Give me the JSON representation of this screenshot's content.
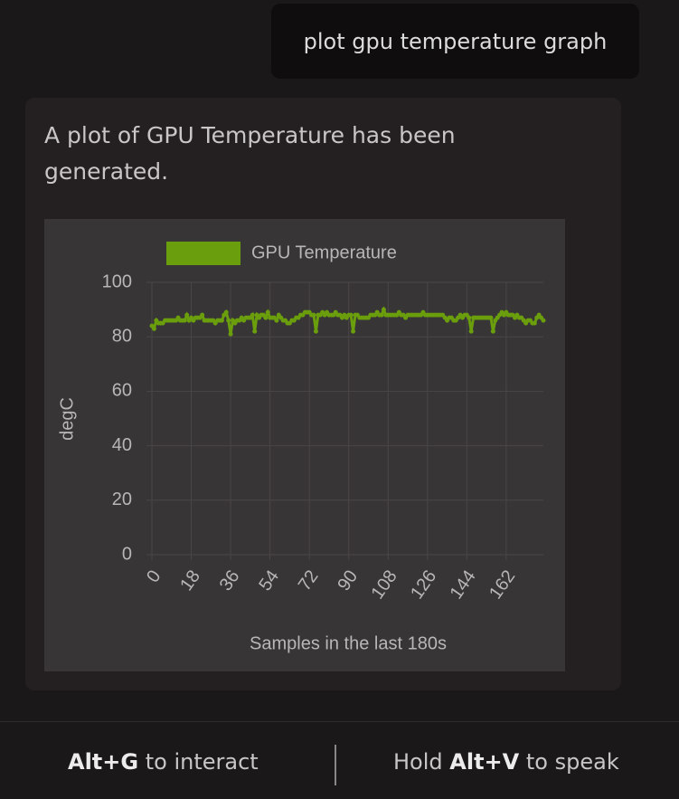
{
  "user_message": "plot gpu temperature graph",
  "assistant_message": "A plot of GPU Temperature has been generated.",
  "footer": {
    "left": {
      "key": "Alt+G",
      "text": "to interact"
    },
    "right": {
      "prefix": "Hold",
      "key": "Alt+V",
      "text": "to speak"
    }
  },
  "chart_data": {
    "type": "line",
    "x_label": "Samples in the last 180s",
    "y_label": "degC",
    "legend": "top",
    "grid": true,
    "xlim": [
      0,
      179
    ],
    "xticks": [
      0,
      18,
      36,
      54,
      72,
      90,
      108,
      126,
      144,
      162
    ],
    "ylim": [
      0,
      100
    ],
    "yticks": [
      0,
      20,
      40,
      60,
      80,
      100
    ],
    "series": [
      {
        "name": "GPU Temperature",
        "color": "#6a9e0c",
        "values": [
          84,
          83,
          86,
          85,
          85,
          85,
          86,
          86,
          86,
          86,
          86,
          86,
          87,
          86,
          86,
          86,
          88,
          86,
          87,
          86,
          87,
          87,
          87,
          88,
          86,
          86,
          86,
          86,
          86,
          85,
          86,
          86,
          86,
          88,
          89,
          86,
          81,
          86,
          85,
          86,
          86,
          87,
          86,
          87,
          87,
          87,
          88,
          82,
          88,
          87,
          88,
          88,
          87,
          89,
          87,
          87,
          87,
          86,
          88,
          87,
          86,
          86,
          85,
          85,
          86,
          86,
          87,
          87,
          88,
          88,
          89,
          89,
          89,
          88,
          88,
          82,
          88,
          88,
          89,
          88,
          89,
          88,
          88,
          88,
          89,
          88,
          88,
          87,
          88,
          87,
          88,
          88,
          82,
          88,
          88,
          87,
          87,
          87,
          87,
          87,
          88,
          88,
          88,
          89,
          88,
          88,
          90,
          88,
          88,
          88,
          88,
          88,
          88,
          89,
          88,
          88,
          87,
          88,
          88,
          88,
          88,
          88,
          88,
          88,
          89,
          88,
          88,
          88,
          88,
          88,
          88,
          88,
          88,
          88,
          87,
          86,
          87,
          87,
          86,
          86,
          87,
          88,
          87,
          88,
          88,
          87,
          82,
          87,
          87,
          87,
          87,
          87,
          87,
          87,
          87,
          87,
          82,
          86,
          87,
          88,
          89,
          88,
          89,
          88,
          88,
          88,
          87,
          88,
          87,
          87,
          86,
          85,
          86,
          86,
          85,
          85,
          87,
          88,
          87,
          86
        ]
      }
    ]
  }
}
